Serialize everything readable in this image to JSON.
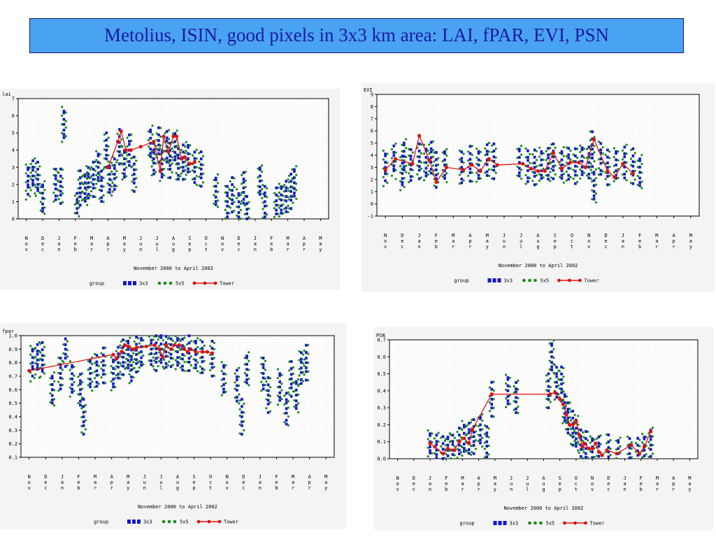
{
  "title": "Metolius, ISIN, good pixels in 3x3 km area: LAI, fPAR, EVI, PSN",
  "colors": {
    "c3x3": "#1515d0",
    "c5x5": "#158a15",
    "tower": "#e01010",
    "grid": "#c8c8c8",
    "panel_bg": "#f4f4f4",
    "title_bg": "#49a2f2",
    "title_fg": "#1a1aa0"
  },
  "chart_data": [
    {
      "id": "lai",
      "type": "scatter",
      "ylabel": "lai",
      "ylim": [
        0,
        7
      ],
      "yticks": [
        "0",
        "1",
        "2",
        "3",
        "4",
        "5",
        "6",
        "7"
      ],
      "xlabel": "November 2000 to April 2002",
      "months": [
        "Nov",
        "Dec",
        "Jan",
        "Feb",
        "Mar",
        "Apr",
        "May",
        "Jun",
        "Jul",
        "Aug",
        "Sep",
        "Oct",
        "Nov",
        "Dec",
        "Jan",
        "Feb",
        "Mar",
        "Apr",
        "May"
      ],
      "legend": {
        "title": "group",
        "items": [
          "3x3",
          "5x5",
          "Tower"
        ]
      },
      "tower": [
        [
          5.0,
          3.0
        ],
        [
          5.6,
          4.5
        ],
        [
          5.8,
          5.1
        ],
        [
          6.1,
          4.0
        ],
        [
          6.4,
          4.0
        ],
        [
          7.0,
          4.2
        ],
        [
          7.8,
          4.5
        ],
        [
          8.2,
          2.8
        ],
        [
          8.4,
          4.8
        ],
        [
          8.7,
          3.9
        ],
        [
          9.0,
          4.8
        ],
        [
          9.2,
          4.8
        ],
        [
          9.5,
          3.5
        ],
        [
          9.7,
          3.6
        ],
        [
          10.0,
          3.2
        ],
        [
          10.3,
          3.3
        ]
      ],
      "clusters": [
        [
          0.1,
          2.2
        ],
        [
          0.4,
          2.5
        ],
        [
          0.7,
          2.3
        ],
        [
          1.0,
          1.2
        ],
        [
          1.8,
          2.0
        ],
        [
          2.1,
          1.9
        ],
        [
          2.3,
          5.5
        ],
        [
          3.1,
          0.6
        ],
        [
          3.3,
          1.8
        ],
        [
          3.6,
          1.8
        ],
        [
          3.8,
          2.1
        ],
        [
          4.1,
          2.3
        ],
        [
          4.4,
          3.0
        ],
        [
          4.6,
          1.9
        ],
        [
          4.9,
          4.0
        ],
        [
          5.1,
          2.3
        ],
        [
          5.4,
          2.6
        ],
        [
          5.7,
          4.2
        ],
        [
          6.0,
          3.2
        ],
        [
          6.3,
          4.0
        ],
        [
          6.6,
          2.6
        ],
        [
          7.6,
          4.4
        ],
        [
          7.8,
          3.5
        ],
        [
          8.1,
          4.3
        ],
        [
          8.3,
          3.2
        ],
        [
          8.6,
          4.2
        ],
        [
          8.8,
          3.4
        ],
        [
          9.1,
          4.2
        ],
        [
          9.3,
          3.2
        ],
        [
          9.6,
          3.3
        ],
        [
          9.9,
          3.5
        ],
        [
          10.3,
          3.0
        ],
        [
          10.7,
          2.9
        ],
        [
          11.6,
          1.6
        ],
        [
          12.3,
          1.0
        ],
        [
          12.6,
          1.4
        ],
        [
          13.0,
          0.7
        ],
        [
          13.3,
          1.8
        ],
        [
          13.5,
          0.3
        ],
        [
          14.3,
          2.2
        ],
        [
          14.6,
          1.0
        ],
        [
          15.3,
          0.8
        ],
        [
          15.6,
          1.1
        ],
        [
          15.9,
          1.3
        ],
        [
          16.2,
          1.6
        ],
        [
          16.4,
          2.1
        ]
      ]
    },
    {
      "id": "evi",
      "type": "scatter",
      "ylabel": "EVI",
      "ylim": [
        -1,
        9
      ],
      "yticks": [
        "-1",
        "0",
        "1",
        "2",
        "3",
        "4",
        "5",
        "6",
        "7",
        "8",
        "9"
      ],
      "xlabel": "November 2000 to April 2002",
      "months": [
        "Nov",
        "Dec",
        "Jan",
        "Feb",
        "Mar",
        "Apr",
        "May",
        "Jun",
        "Jul",
        "Aug",
        "Sep",
        "Oct",
        "Nov",
        "Dec",
        "Jan",
        "Feb",
        "Mar",
        "Apr",
        "May"
      ],
      "legend": {
        "title": "group",
        "items": [
          "3x3",
          "5x5",
          "Tower"
        ]
      },
      "tower": [
        [
          0.0,
          2.8
        ],
        [
          0.6,
          3.7
        ],
        [
          1.6,
          3.3
        ],
        [
          2.0,
          5.6
        ],
        [
          2.6,
          3.6
        ],
        [
          3.0,
          1.8
        ],
        [
          3.6,
          3.0
        ],
        [
          4.6,
          2.8
        ],
        [
          5.1,
          3.2
        ],
        [
          5.6,
          2.7
        ],
        [
          6.1,
          3.7
        ],
        [
          6.6,
          3.2
        ],
        [
          8.1,
          3.3
        ],
        [
          8.6,
          2.9
        ],
        [
          9.0,
          2.7
        ],
        [
          9.4,
          2.7
        ],
        [
          9.9,
          4.2
        ],
        [
          10.4,
          2.9
        ],
        [
          10.9,
          3.4
        ],
        [
          11.4,
          3.4
        ],
        [
          11.8,
          3.0
        ],
        [
          12.3,
          5.3
        ],
        [
          13.1,
          2.7
        ],
        [
          13.5,
          2.2
        ],
        [
          14.0,
          3.3
        ],
        [
          14.6,
          2.5
        ]
      ],
      "clusters": [
        [
          0.0,
          3.0
        ],
        [
          0.5,
          3.5
        ],
        [
          1.0,
          2.5
        ],
        [
          1.1,
          3.9
        ],
        [
          1.5,
          3.2
        ],
        [
          2.0,
          3.5
        ],
        [
          2.4,
          3.4
        ],
        [
          2.7,
          3.8
        ],
        [
          3.0,
          2.8
        ],
        [
          3.5,
          3.2
        ],
        [
          4.5,
          3.0
        ],
        [
          5.0,
          3.3
        ],
        [
          5.5,
          3.2
        ],
        [
          6.0,
          3.6
        ],
        [
          6.4,
          3.5
        ],
        [
          7.9,
          3.4
        ],
        [
          8.4,
          3.1
        ],
        [
          8.8,
          3.0
        ],
        [
          9.2,
          3.2
        ],
        [
          9.6,
          3.3
        ],
        [
          9.9,
          3.5
        ],
        [
          10.4,
          3.2
        ],
        [
          10.8,
          3.3
        ],
        [
          11.2,
          3.1
        ],
        [
          11.6,
          3.5
        ],
        [
          12.0,
          3.4
        ],
        [
          12.2,
          4.5
        ],
        [
          12.3,
          1.5
        ],
        [
          12.7,
          3.7
        ],
        [
          13.1,
          3.0
        ],
        [
          13.6,
          3.2
        ],
        [
          14.1,
          3.4
        ],
        [
          14.6,
          3.1
        ],
        [
          15.0,
          2.6
        ]
      ]
    },
    {
      "id": "fpar",
      "type": "scatter",
      "ylabel": "fpar",
      "ylim": [
        0.1,
        1.0
      ],
      "yticks": [
        "0.1",
        "0.2",
        "0.3",
        "0.4",
        "0.5",
        "0.6",
        "0.7",
        "0.8",
        "0.9",
        "1.0"
      ],
      "xlabel": "November 2000 to April 2002",
      "months": [
        "Nov",
        "Dec",
        "Jan",
        "Feb",
        "Mar",
        "Apr",
        "May",
        "Jun",
        "Jul",
        "Aug",
        "Sep",
        "Oct",
        "Nov",
        "Dec",
        "Jan",
        "Feb",
        "Mar",
        "Apr",
        "May"
      ],
      "legend": {
        "title": "group",
        "items": [
          "3x3",
          "5x5",
          "Tower"
        ]
      },
      "tower": [
        [
          0.0,
          0.74
        ],
        [
          5.1,
          0.86
        ],
        [
          5.3,
          0.83
        ],
        [
          5.6,
          0.88
        ],
        [
          5.8,
          0.93
        ],
        [
          6.0,
          0.92
        ],
        [
          6.3,
          0.9
        ],
        [
          6.5,
          0.91
        ],
        [
          7.1,
          0.92
        ],
        [
          7.6,
          0.93
        ],
        [
          7.9,
          0.9
        ],
        [
          8.1,
          0.84
        ],
        [
          8.3,
          0.93
        ],
        [
          8.6,
          0.9
        ],
        [
          8.8,
          0.93
        ],
        [
          9.1,
          0.93
        ],
        [
          9.4,
          0.9
        ],
        [
          9.6,
          0.88
        ],
        [
          9.8,
          0.9
        ],
        [
          10.1,
          0.88
        ],
        [
          10.5,
          0.88
        ],
        [
          10.8,
          0.88
        ],
        [
          11.1,
          0.87
        ]
      ],
      "clusters": [
        [
          0.2,
          0.8
        ],
        [
          0.5,
          0.82
        ],
        [
          0.8,
          0.82
        ],
        [
          1.4,
          0.6
        ],
        [
          1.9,
          0.72
        ],
        [
          2.2,
          0.9
        ],
        [
          2.6,
          0.68
        ],
        [
          3.1,
          0.6
        ],
        [
          3.3,
          0.4
        ],
        [
          3.7,
          0.72
        ],
        [
          4.1,
          0.74
        ],
        [
          4.5,
          0.78
        ],
        [
          5.1,
          0.72
        ],
        [
          5.4,
          0.8
        ],
        [
          5.7,
          0.84
        ],
        [
          6.0,
          0.86
        ],
        [
          6.2,
          0.78
        ],
        [
          6.5,
          0.86
        ],
        [
          6.8,
          0.88
        ],
        [
          7.4,
          0.9
        ],
        [
          7.7,
          0.87
        ],
        [
          8.0,
          0.9
        ],
        [
          8.3,
          0.88
        ],
        [
          8.6,
          0.9
        ],
        [
          9.0,
          0.88
        ],
        [
          9.3,
          0.86
        ],
        [
          9.7,
          0.87
        ],
        [
          10.1,
          0.86
        ],
        [
          10.5,
          0.84
        ],
        [
          11.1,
          0.83
        ],
        [
          11.8,
          0.68
        ],
        [
          12.6,
          0.63
        ],
        [
          12.9,
          0.4
        ],
        [
          13.2,
          0.75
        ],
        [
          14.2,
          0.72
        ],
        [
          14.5,
          0.56
        ],
        [
          15.2,
          0.62
        ],
        [
          15.6,
          0.46
        ],
        [
          15.9,
          0.68
        ],
        [
          16.2,
          0.56
        ],
        [
          16.5,
          0.76
        ],
        [
          16.8,
          0.8
        ]
      ]
    },
    {
      "id": "psn",
      "type": "scatter",
      "ylabel": "PSN",
      "ylim": [
        0.0,
        0.7
      ],
      "yticks": [
        "0.0",
        "0.1",
        "0.2",
        "0.3",
        "0.4",
        "0.5",
        "0.6",
        "0.7"
      ],
      "xlabel": "November 2000 to April 2002",
      "months": [
        "Nov",
        "Dec",
        "Jan",
        "Feb",
        "Mar",
        "Apr",
        "May",
        "Jun",
        "Jul",
        "Aug",
        "Sep",
        "Oct",
        "Nov",
        "Dec",
        "Jan",
        "Feb",
        "Mar",
        "Apr",
        "May"
      ],
      "legend": {
        "title": "group",
        "items": [
          "3x3",
          "5x5",
          "Tower"
        ]
      },
      "tower": [
        [
          2.0,
          0.09
        ],
        [
          2.3,
          0.07
        ],
        [
          2.8,
          0.03
        ],
        [
          3.1,
          0.06
        ],
        [
          3.5,
          0.05
        ],
        [
          3.8,
          0.1
        ],
        [
          4.1,
          0.12
        ],
        [
          4.4,
          0.09
        ],
        [
          4.6,
          0.17
        ],
        [
          5.8,
          0.38
        ],
        [
          9.4,
          0.38
        ],
        [
          9.7,
          0.39
        ],
        [
          10.0,
          0.35
        ],
        [
          10.2,
          0.32
        ],
        [
          10.4,
          0.26
        ],
        [
          10.6,
          0.2
        ],
        [
          10.8,
          0.2
        ],
        [
          11.0,
          0.22
        ],
        [
          11.2,
          0.14
        ],
        [
          11.4,
          0.07
        ],
        [
          11.5,
          0.09
        ],
        [
          11.8,
          0.06
        ],
        [
          12.0,
          0.06
        ],
        [
          12.2,
          0.09
        ],
        [
          12.4,
          0.04
        ],
        [
          12.6,
          0.02
        ],
        [
          12.9,
          0.05
        ],
        [
          13.5,
          0.03
        ],
        [
          14.4,
          0.08
        ],
        [
          14.9,
          0.03
        ],
        [
          15.2,
          0.07
        ],
        [
          15.6,
          0.16
        ]
      ],
      "clusters": [
        [
          2.0,
          0.07
        ],
        [
          2.4,
          0.05
        ],
        [
          2.8,
          0.03
        ],
        [
          3.1,
          0.05
        ],
        [
          3.4,
          0.05
        ],
        [
          3.8,
          0.08
        ],
        [
          4.1,
          0.12
        ],
        [
          4.4,
          0.12
        ],
        [
          4.7,
          0.13
        ],
        [
          5.1,
          0.17
        ],
        [
          5.5,
          0.1
        ],
        [
          5.8,
          0.35
        ],
        [
          6.8,
          0.4
        ],
        [
          7.3,
          0.36
        ],
        [
          9.3,
          0.4
        ],
        [
          9.5,
          0.6
        ],
        [
          9.8,
          0.45
        ],
        [
          10.1,
          0.44
        ],
        [
          10.3,
          0.3
        ],
        [
          10.5,
          0.24
        ],
        [
          10.8,
          0.18
        ],
        [
          11.0,
          0.15
        ],
        [
          11.3,
          0.08
        ],
        [
          11.6,
          0.06
        ],
        [
          12.0,
          0.04
        ],
        [
          12.4,
          0.04
        ],
        [
          13.0,
          0.04
        ],
        [
          13.6,
          0.03
        ],
        [
          14.3,
          0.03
        ],
        [
          14.8,
          0.02
        ],
        [
          15.2,
          0.05
        ],
        [
          15.6,
          0.08
        ]
      ]
    }
  ]
}
